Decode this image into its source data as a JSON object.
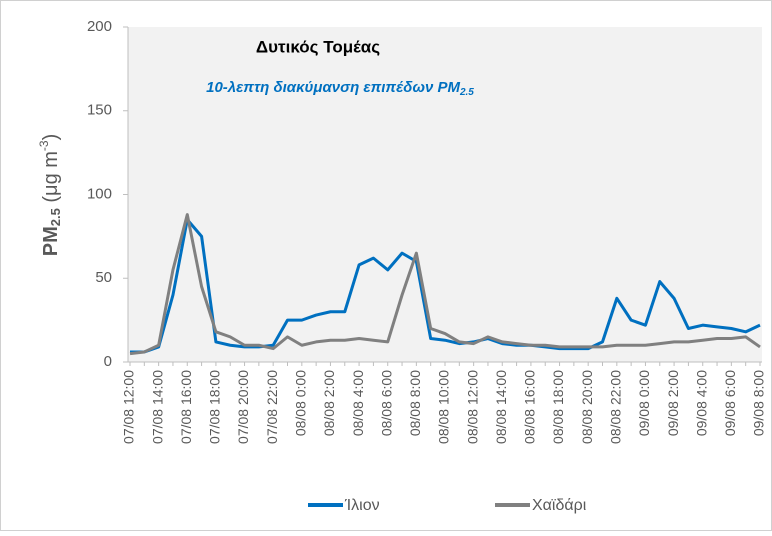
{
  "chart_data": {
    "type": "line",
    "title": "Δυτικός Τομέας",
    "subtitle": "10-λεπτη διακύμανση επιπέδων PM",
    "subtitle_sub": "2.5",
    "y_label": [
      "PM",
      "2.5",
      " (μg m",
      "-3",
      ")"
    ],
    "categories": [
      "07/08 12:00",
      null,
      "07/08 14:00",
      null,
      "07/08 16:00",
      null,
      "07/08 18:00",
      null,
      "07/08 20:00",
      null,
      "07/08 22:00",
      null,
      "08/08 0:00",
      null,
      "08/08 2:00",
      null,
      "08/08 4:00",
      null,
      "08/08 6:00",
      null,
      "08/08 8:00",
      null,
      "08/08 10:00",
      null,
      "08/08 12:00",
      null,
      "08/08 14:00",
      null,
      "08/08 16:00",
      null,
      "08/08 18:00",
      null,
      "08/08 20:00",
      null,
      "08/08 22:00",
      null,
      "09/08 0:00",
      null,
      "09/08 2:00",
      null,
      "09/08 4:00",
      null,
      "09/08 6:00",
      null,
      "09/08 8:00"
    ],
    "series": [
      {
        "name": "Ίλιον",
        "color": "#0070c0",
        "values": [
          6,
          6,
          9,
          40,
          85,
          75,
          12,
          10,
          9,
          9,
          10,
          25,
          25,
          28,
          30,
          30,
          58,
          62,
          55,
          65,
          60,
          14,
          13,
          11,
          12,
          14,
          11,
          10,
          10,
          9,
          8,
          8,
          8,
          12,
          38,
          25,
          22,
          48,
          38,
          20,
          22,
          21,
          20,
          18,
          22
        ]
      },
      {
        "name": "Χαϊδάρι",
        "color": "#808080",
        "values": [
          5,
          6,
          10,
          55,
          88,
          45,
          18,
          15,
          10,
          10,
          8,
          15,
          10,
          12,
          13,
          13,
          14,
          13,
          12,
          40,
          65,
          20,
          17,
          12,
          11,
          15,
          12,
          11,
          10,
          10,
          9,
          9,
          9,
          9,
          10,
          10,
          10,
          11,
          12,
          12,
          13,
          14,
          14,
          15,
          9
        ]
      }
    ],
    "ylim": [
      0,
      200
    ],
    "yticks": [
      0,
      50,
      100,
      150,
      200
    ]
  }
}
